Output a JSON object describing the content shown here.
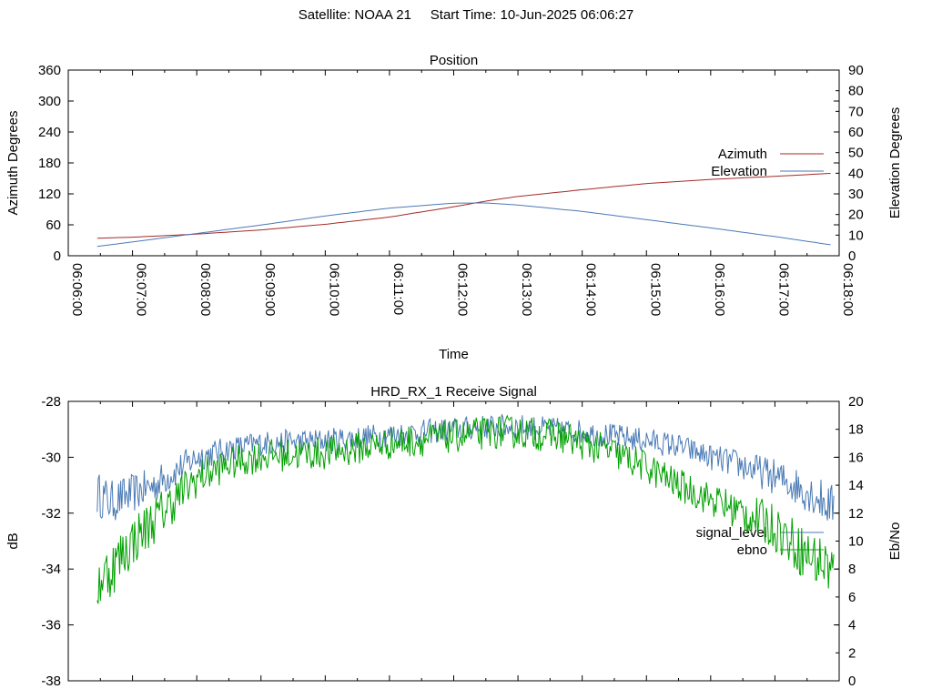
{
  "header": {
    "satellite_label": "Satellite: NOAA 21",
    "start_time_label": "Start Time: 10-Jun-2025 06:06:27"
  },
  "chart_data": [
    {
      "type": "line",
      "title": "Position",
      "xlabel": "Time",
      "ylabel": "Azimuth Degrees",
      "y2label": "Elevation Degrees",
      "xlim": [
        "06:06:00",
        "06:18:00"
      ],
      "ylim": [
        0,
        360
      ],
      "y2lim": [
        0,
        90
      ],
      "xticks": [
        "06:06:00",
        "06:07:00",
        "06:08:00",
        "06:09:00",
        "06:10:00",
        "06:11:00",
        "06:12:00",
        "06:13:00",
        "06:14:00",
        "06:15:00",
        "06:16:00",
        "06:17:00",
        "06:18:00"
      ],
      "yticks": [
        "0",
        "60",
        "120",
        "180",
        "240",
        "300",
        "360"
      ],
      "y2ticks": [
        "0",
        "10",
        "20",
        "30",
        "40",
        "50",
        "60",
        "70",
        "80",
        "90"
      ],
      "legend_position": "right",
      "grid": false,
      "series": [
        {
          "name": "Azimuth",
          "axis": "left",
          "color": "#a52a2a",
          "x": [
            "06:06:27",
            "06:07:00",
            "06:08:00",
            "06:09:00",
            "06:10:00",
            "06:11:00",
            "06:12:00",
            "06:12:30",
            "06:13:00",
            "06:14:00",
            "06:15:00",
            "06:16:00",
            "06:17:00",
            "06:17:55"
          ],
          "y": [
            34,
            36,
            42,
            50,
            61,
            75,
            95,
            106,
            115,
            128,
            140,
            148,
            154,
            160
          ]
        },
        {
          "name": "Elevation",
          "axis": "right",
          "color": "#4a7ab5",
          "x": [
            "06:06:27",
            "06:07:00",
            "06:08:00",
            "06:09:00",
            "06:10:00",
            "06:11:00",
            "06:12:00",
            "06:12:30",
            "06:13:00",
            "06:14:00",
            "06:15:00",
            "06:16:00",
            "06:17:00",
            "06:17:55"
          ],
          "y": [
            4.5,
            6.7,
            10.8,
            14.9,
            19.3,
            23.1,
            25.5,
            25.6,
            24.6,
            21.5,
            17.5,
            13.5,
            9.3,
            5.1
          ]
        }
      ]
    },
    {
      "type": "line",
      "title": "HRD_RX_1 Receive Signal",
      "xlabel": "",
      "ylabel": "dB",
      "y2label": "Eb/No",
      "xlim": [
        "06:06:00",
        "06:18:00"
      ],
      "ylim": [
        -38,
        -28
      ],
      "y2lim": [
        0,
        20
      ],
      "yticks": [
        "-38",
        "-36",
        "-34",
        "-32",
        "-30",
        "-28"
      ],
      "y2ticks": [
        "0",
        "2",
        "4",
        "6",
        "8",
        "10",
        "12",
        "14",
        "16",
        "18",
        "20"
      ],
      "legend_position": "right",
      "grid": false,
      "series": [
        {
          "name": "signal_level",
          "axis": "left",
          "color": "#4a7ab5",
          "x": [
            "06:06:27",
            "06:06:40",
            "06:07:00",
            "06:07:20",
            "06:07:40",
            "06:08:00",
            "06:08:30",
            "06:09:00",
            "06:10:00",
            "06:11:00",
            "06:12:00",
            "06:12:40",
            "06:13:00",
            "06:14:00",
            "06:15:00",
            "06:15:30",
            "06:16:00",
            "06:16:30",
            "06:17:00",
            "06:17:30",
            "06:17:55"
          ],
          "y": [
            -31.3,
            -31.6,
            -31.3,
            -31.0,
            -30.5,
            -30.0,
            -29.7,
            -29.5,
            -29.4,
            -29.2,
            -29.0,
            -28.9,
            -28.9,
            -29.1,
            -29.4,
            -29.6,
            -30.0,
            -30.3,
            -30.7,
            -31.2,
            -31.8
          ],
          "noise": 0.45
        },
        {
          "name": "ebno",
          "axis": "right",
          "color": "#00a000",
          "x": [
            "06:06:27",
            "06:06:40",
            "06:07:00",
            "06:07:20",
            "06:07:40",
            "06:08:00",
            "06:08:30",
            "06:09:00",
            "06:10:00",
            "06:11:00",
            "06:12:00",
            "06:12:40",
            "06:13:00",
            "06:13:40",
            "06:14:00",
            "06:14:30",
            "06:15:00",
            "06:15:30",
            "06:16:00",
            "06:16:30",
            "06:17:00",
            "06:17:30",
            "06:17:55"
          ],
          "y": [
            7.0,
            8.0,
            10.0,
            11.5,
            13.0,
            14.5,
            15.5,
            16.1,
            16.3,
            17.0,
            17.5,
            17.8,
            17.8,
            17.5,
            17.0,
            16.3,
            15.3,
            14.0,
            13.0,
            12.0,
            11.0,
            9.0,
            8.0
          ],
          "noise": 1.2
        }
      ]
    }
  ]
}
